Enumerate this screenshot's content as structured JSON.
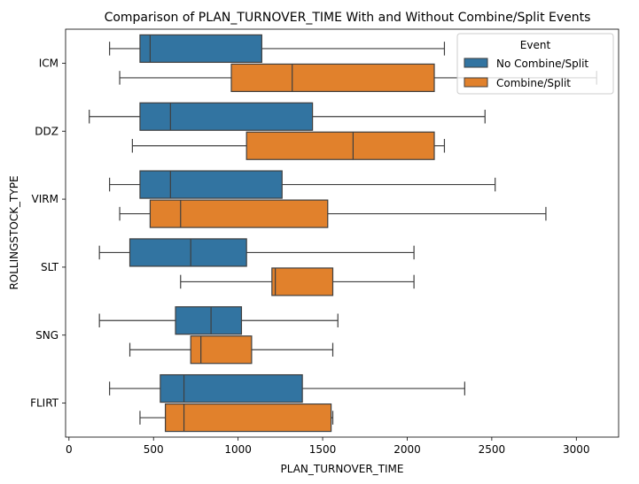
{
  "chart_data": {
    "type": "boxplot",
    "orientation": "horizontal",
    "title": "Comparison of PLAN_TURNOVER_TIME With and Without Combine/Split Events",
    "xlabel": "PLAN_TURNOVER_TIME",
    "ylabel": "ROLLINGSTOCK_TYPE",
    "xlim": [
      -20,
      3250
    ],
    "xticks": [
      0,
      500,
      1000,
      1500,
      2000,
      2500,
      3000
    ],
    "grid": false,
    "categories": [
      "ICM",
      "DDZ",
      "VIRM",
      "SLT",
      "SNG",
      "FLIRT"
    ],
    "legend": {
      "title": "Event",
      "placement": "top-right"
    },
    "series": [
      {
        "name": "No Combine/Split",
        "color": "#3274a1",
        "boxes": [
          {
            "whisker_low": 240,
            "q1": 420,
            "median": 480,
            "q3": 1140,
            "whisker_high": 2220
          },
          {
            "whisker_low": 120,
            "q1": 420,
            "median": 600,
            "q3": 1440,
            "whisker_high": 2460
          },
          {
            "whisker_low": 240,
            "q1": 420,
            "median": 600,
            "q3": 1260,
            "whisker_high": 2520
          },
          {
            "whisker_low": 180,
            "q1": 360,
            "median": 720,
            "q3": 1050,
            "whisker_high": 2040
          },
          {
            "whisker_low": 180,
            "q1": 630,
            "median": 840,
            "q3": 1020,
            "whisker_high": 1590
          },
          {
            "whisker_low": 240,
            "q1": 540,
            "median": 680,
            "q3": 1380,
            "whisker_high": 2340
          }
        ]
      },
      {
        "name": "Combine/Split",
        "color": "#e1812c",
        "boxes": [
          {
            "whisker_low": 300,
            "q1": 960,
            "median": 1320,
            "q3": 2160,
            "whisker_high": 3120
          },
          {
            "whisker_low": 375,
            "q1": 1050,
            "median": 1680,
            "q3": 2160,
            "whisker_high": 2220
          },
          {
            "whisker_low": 300,
            "q1": 480,
            "median": 660,
            "q3": 1530,
            "whisker_high": 2820
          },
          {
            "whisker_low": 660,
            "q1": 1200,
            "median": 1220,
            "q3": 1560,
            "whisker_high": 2040
          },
          {
            "whisker_low": 360,
            "q1": 720,
            "median": 780,
            "q3": 1080,
            "whisker_high": 1560
          },
          {
            "whisker_low": 420,
            "q1": 570,
            "median": 680,
            "q3": 1550,
            "whisker_high": 1560
          }
        ]
      }
    ]
  }
}
